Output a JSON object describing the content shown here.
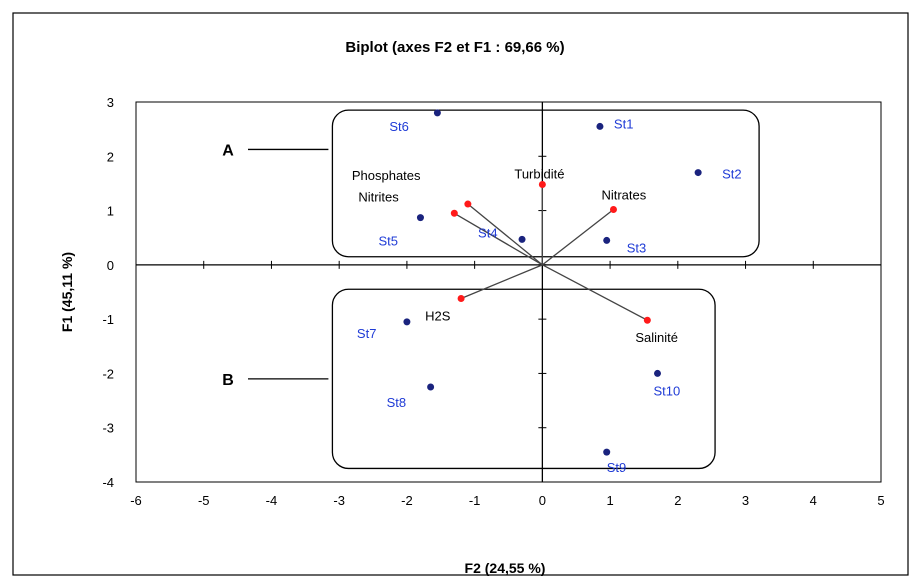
{
  "chart_data": {
    "type": "scatter",
    "title": "Biplot (axes F2 et F1 : 69,66 %)",
    "xlabel": "F2 (24,55 %)",
    "ylabel": "F1 (45,11 %)",
    "xlim": [
      -6,
      5
    ],
    "ylim": [
      -4,
      3
    ],
    "xticks": [
      "-6",
      "-5",
      "-4",
      "-3",
      "-2",
      "-1",
      "0",
      "1",
      "2",
      "3",
      "4",
      "5"
    ],
    "yticks": [
      "3",
      "2",
      "1",
      "0",
      "-1",
      "-2",
      "-3",
      "-4"
    ],
    "grid": false,
    "observations": [
      {
        "label": "St1",
        "x": 0.85,
        "y": 2.55
      },
      {
        "label": "St2",
        "x": 2.3,
        "y": 1.7
      },
      {
        "label": "St3",
        "x": 0.95,
        "y": 0.45
      },
      {
        "label": "St4",
        "x": -0.3,
        "y": 0.47
      },
      {
        "label": "St5",
        "x": -1.8,
        "y": 0.87
      },
      {
        "label": "St6",
        "x": -1.55,
        "y": 2.8
      },
      {
        "label": "St7",
        "x": -2.0,
        "y": -1.05
      },
      {
        "label": "St8",
        "x": -1.65,
        "y": -2.25
      },
      {
        "label": "St9",
        "x": 0.95,
        "y": -3.45
      },
      {
        "label": "St10",
        "x": 1.7,
        "y": -2.0
      }
    ],
    "variables": [
      {
        "label": "Turbidité",
        "x": 0.0,
        "y": 1.48
      },
      {
        "label": "Phosphates",
        "x": -1.1,
        "y": 1.12
      },
      {
        "label": "Nitrites",
        "x": -1.3,
        "y": 0.95
      },
      {
        "label": "Nitrates",
        "x": 1.05,
        "y": 1.02
      },
      {
        "label": "H2S",
        "x": -1.2,
        "y": -0.62
      },
      {
        "label": "Salinité",
        "x": 1.55,
        "y": -1.02
      }
    ],
    "groups": [
      {
        "label": "A",
        "xrange": [
          -3.1,
          3.2
        ],
        "yrange": [
          0.15,
          2.85
        ]
      },
      {
        "label": "B",
        "xrange": [
          -3.1,
          2.55
        ],
        "yrange": [
          -3.75,
          -0.45
        ]
      }
    ],
    "colors": {
      "observations": "#1a237e",
      "observation_labels": "#1f3bd6",
      "variables": "#ff1a1a",
      "vectors": "#444444"
    }
  }
}
